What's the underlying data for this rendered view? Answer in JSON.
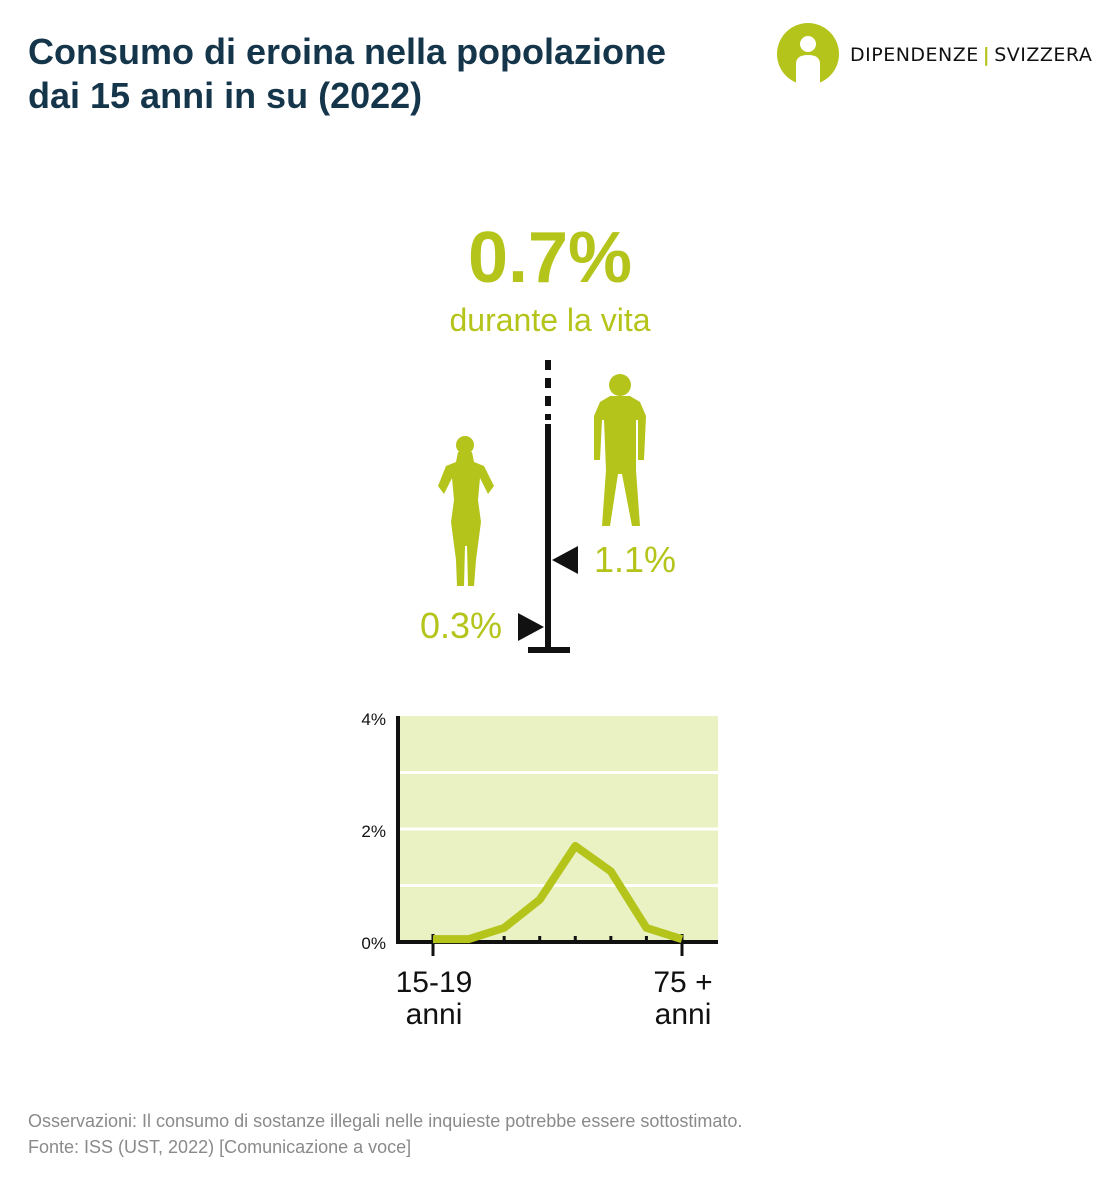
{
  "title": {
    "line1": "Consumo di eroina nella popolazione",
    "line2": "dai 15 anni in su (2022)"
  },
  "logo": {
    "icon": "info-person-icon",
    "part1": "DIPENDENZE",
    "separator": "|",
    "part2": "SVIZZERA"
  },
  "headline": {
    "value": "0.7%",
    "label": "durante la vita"
  },
  "gender_scale": {
    "women_value": "0.3%",
    "men_value": "1.1%",
    "women_icon": "woman-silhouette-icon",
    "men_icon": "man-silhouette-icon"
  },
  "colors": {
    "accent": "#b4c41a",
    "plot_bg": "#eaf1c2",
    "title": "#15364a",
    "axis": "#111111",
    "notes": "#8a8a8a"
  },
  "chart_data": {
    "type": "line",
    "categories": [
      "15-19 anni",
      "",
      "",
      "",
      "",
      "",
      "",
      "75 + anni"
    ],
    "x_labels": [
      {
        "line1": "15-19",
        "line2": "anni"
      },
      {
        "line1": "75 +",
        "line2": "anni"
      }
    ],
    "values": [
      0.05,
      0.05,
      0.25,
      0.75,
      1.7,
      1.25,
      0.25,
      0.05
    ],
    "ylim": [
      0,
      4
    ],
    "yticks": [
      "0%",
      "2%",
      "4%"
    ],
    "grid": true,
    "xlabel": "",
    "ylabel": ""
  },
  "notes": {
    "line1": "Osservazioni: Il consumo di sostanze illegali nelle inquieste potrebbe essere sottostimato.",
    "line2": "Fonte: ISS (UST, 2022) [Comunicazione a voce]"
  }
}
